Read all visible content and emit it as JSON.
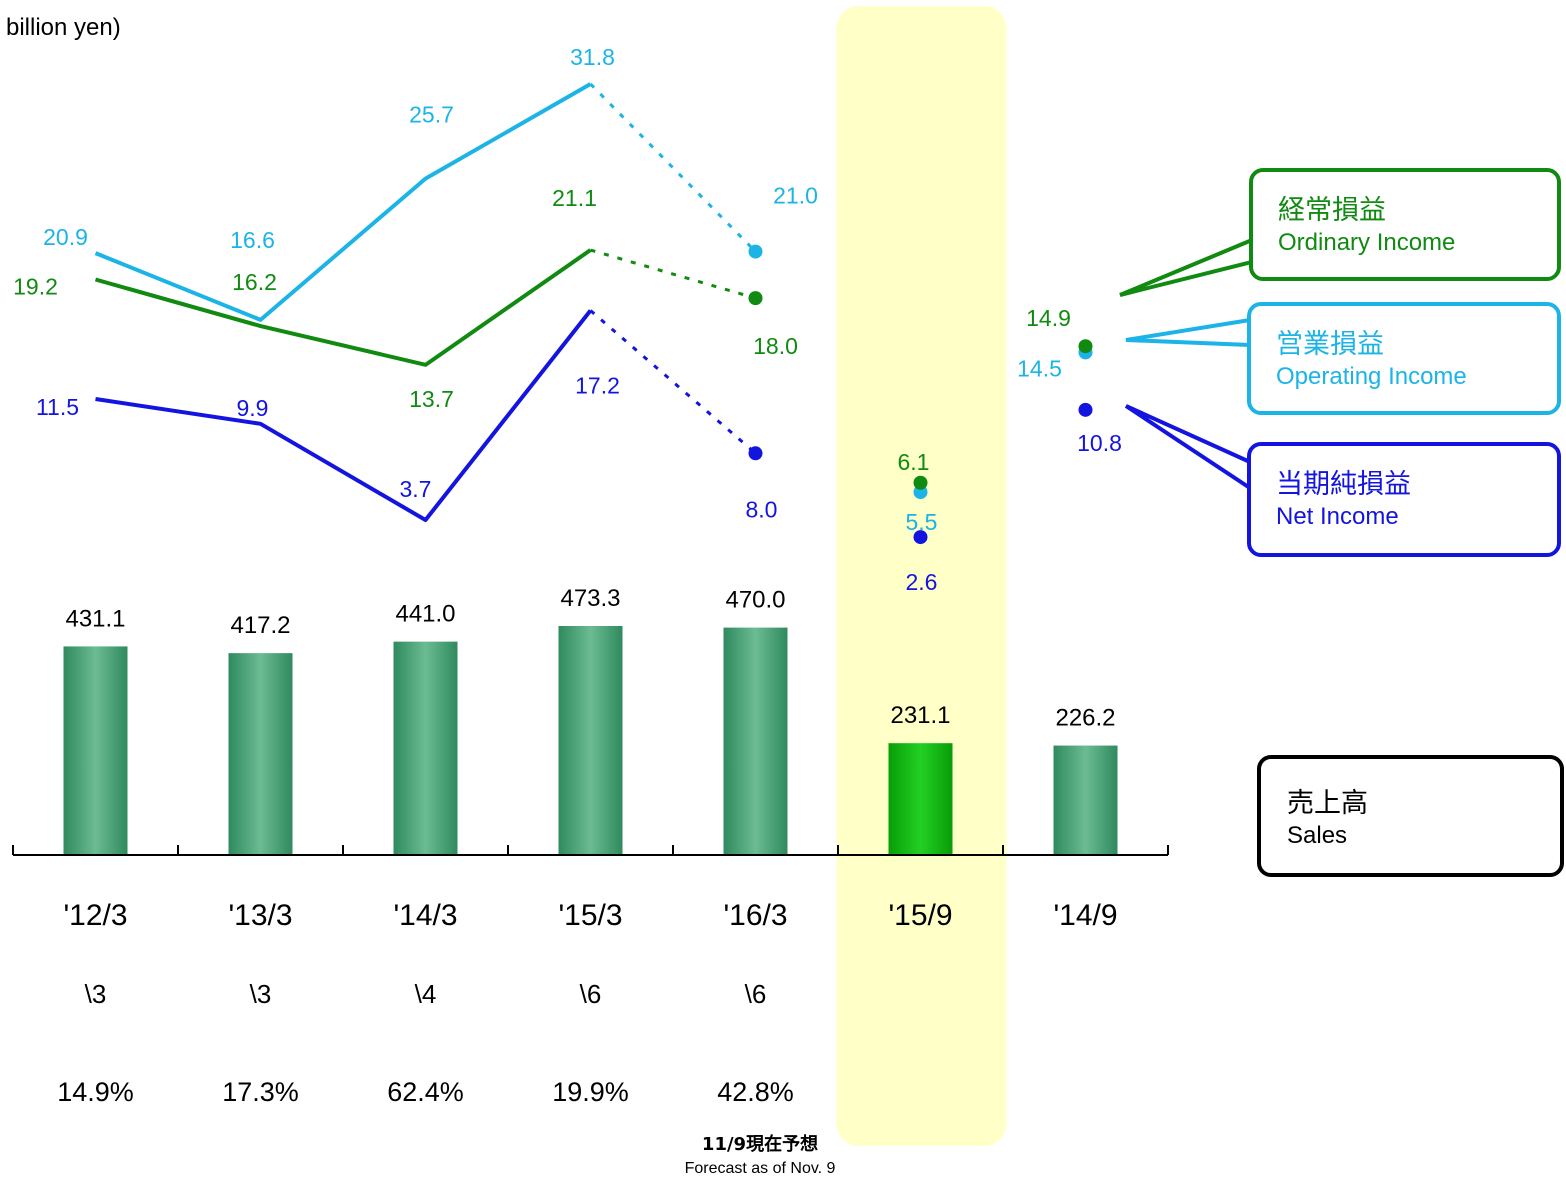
{
  "unit_label": "billion yen)",
  "footnote": {
    "jp": "11/9現在予想",
    "en": "Forecast as of Nov. 9"
  },
  "legends": {
    "ordinary": {
      "jp": "経常損益",
      "en": "Ordinary Income",
      "color": "#118a11"
    },
    "operating": {
      "jp": "営業損益",
      "en": "Operating Income",
      "color": "#1cb4e6"
    },
    "net": {
      "jp": "当期純損益",
      "en": "Net Income",
      "color": "#1414e0"
    },
    "sales": {
      "jp": "売上高",
      "en": "Sales",
      "color": "#000000"
    }
  },
  "colors": {
    "bar": "#3f9e6e",
    "bar_highlight": "#10b010",
    "highlight_band": "#ffffc8"
  },
  "chart_data": {
    "type": "bar",
    "categories": [
      "'12/3",
      "'13/3",
      "'14/3",
      "'15/3",
      "'16/3",
      "'15/9",
      "'14/9"
    ],
    "highlight_category": "'15/9",
    "dividends": [
      "\\3",
      "\\3",
      "\\4",
      "\\6",
      "\\6",
      "",
      ""
    ],
    "ratios": [
      "14.9%",
      "17.3%",
      "62.4%",
      "19.9%",
      "42.8%",
      "",
      ""
    ],
    "series": [
      {
        "name": "Sales",
        "type": "bar",
        "values": [
          431.1,
          417.2,
          441.0,
          473.3,
          470.0,
          231.1,
          226.2
        ],
        "labels": [
          "431.1",
          "417.2",
          "441.0",
          "473.3",
          "470.0",
          "231.1",
          "226.2"
        ]
      },
      {
        "name": "Operating Income",
        "type": "line",
        "color": "#1cb4e6",
        "values": [
          20.9,
          16.6,
          25.7,
          31.8,
          21.0,
          5.5,
          14.5
        ],
        "labels": [
          "20.9",
          "16.6",
          "25.7",
          "31.8",
          "21.0",
          "5.5",
          "14.5"
        ]
      },
      {
        "name": "Ordinary Income",
        "type": "line",
        "color": "#118a11",
        "values": [
          19.2,
          16.2,
          13.7,
          21.1,
          18.0,
          6.1,
          14.9
        ],
        "labels": [
          "19.2",
          "16.2",
          "13.7",
          "21.1",
          "18.0",
          "6.1",
          "14.9"
        ]
      },
      {
        "name": "Net Income",
        "type": "line",
        "color": "#1414e0",
        "values": [
          11.5,
          9.9,
          3.7,
          17.2,
          8.0,
          2.6,
          10.8
        ],
        "labels": [
          "11.5",
          "9.9",
          "3.7",
          "17.2",
          "8.0",
          "2.6",
          "10.8"
        ]
      }
    ],
    "forecast_category": "'16/3",
    "grid": false
  }
}
